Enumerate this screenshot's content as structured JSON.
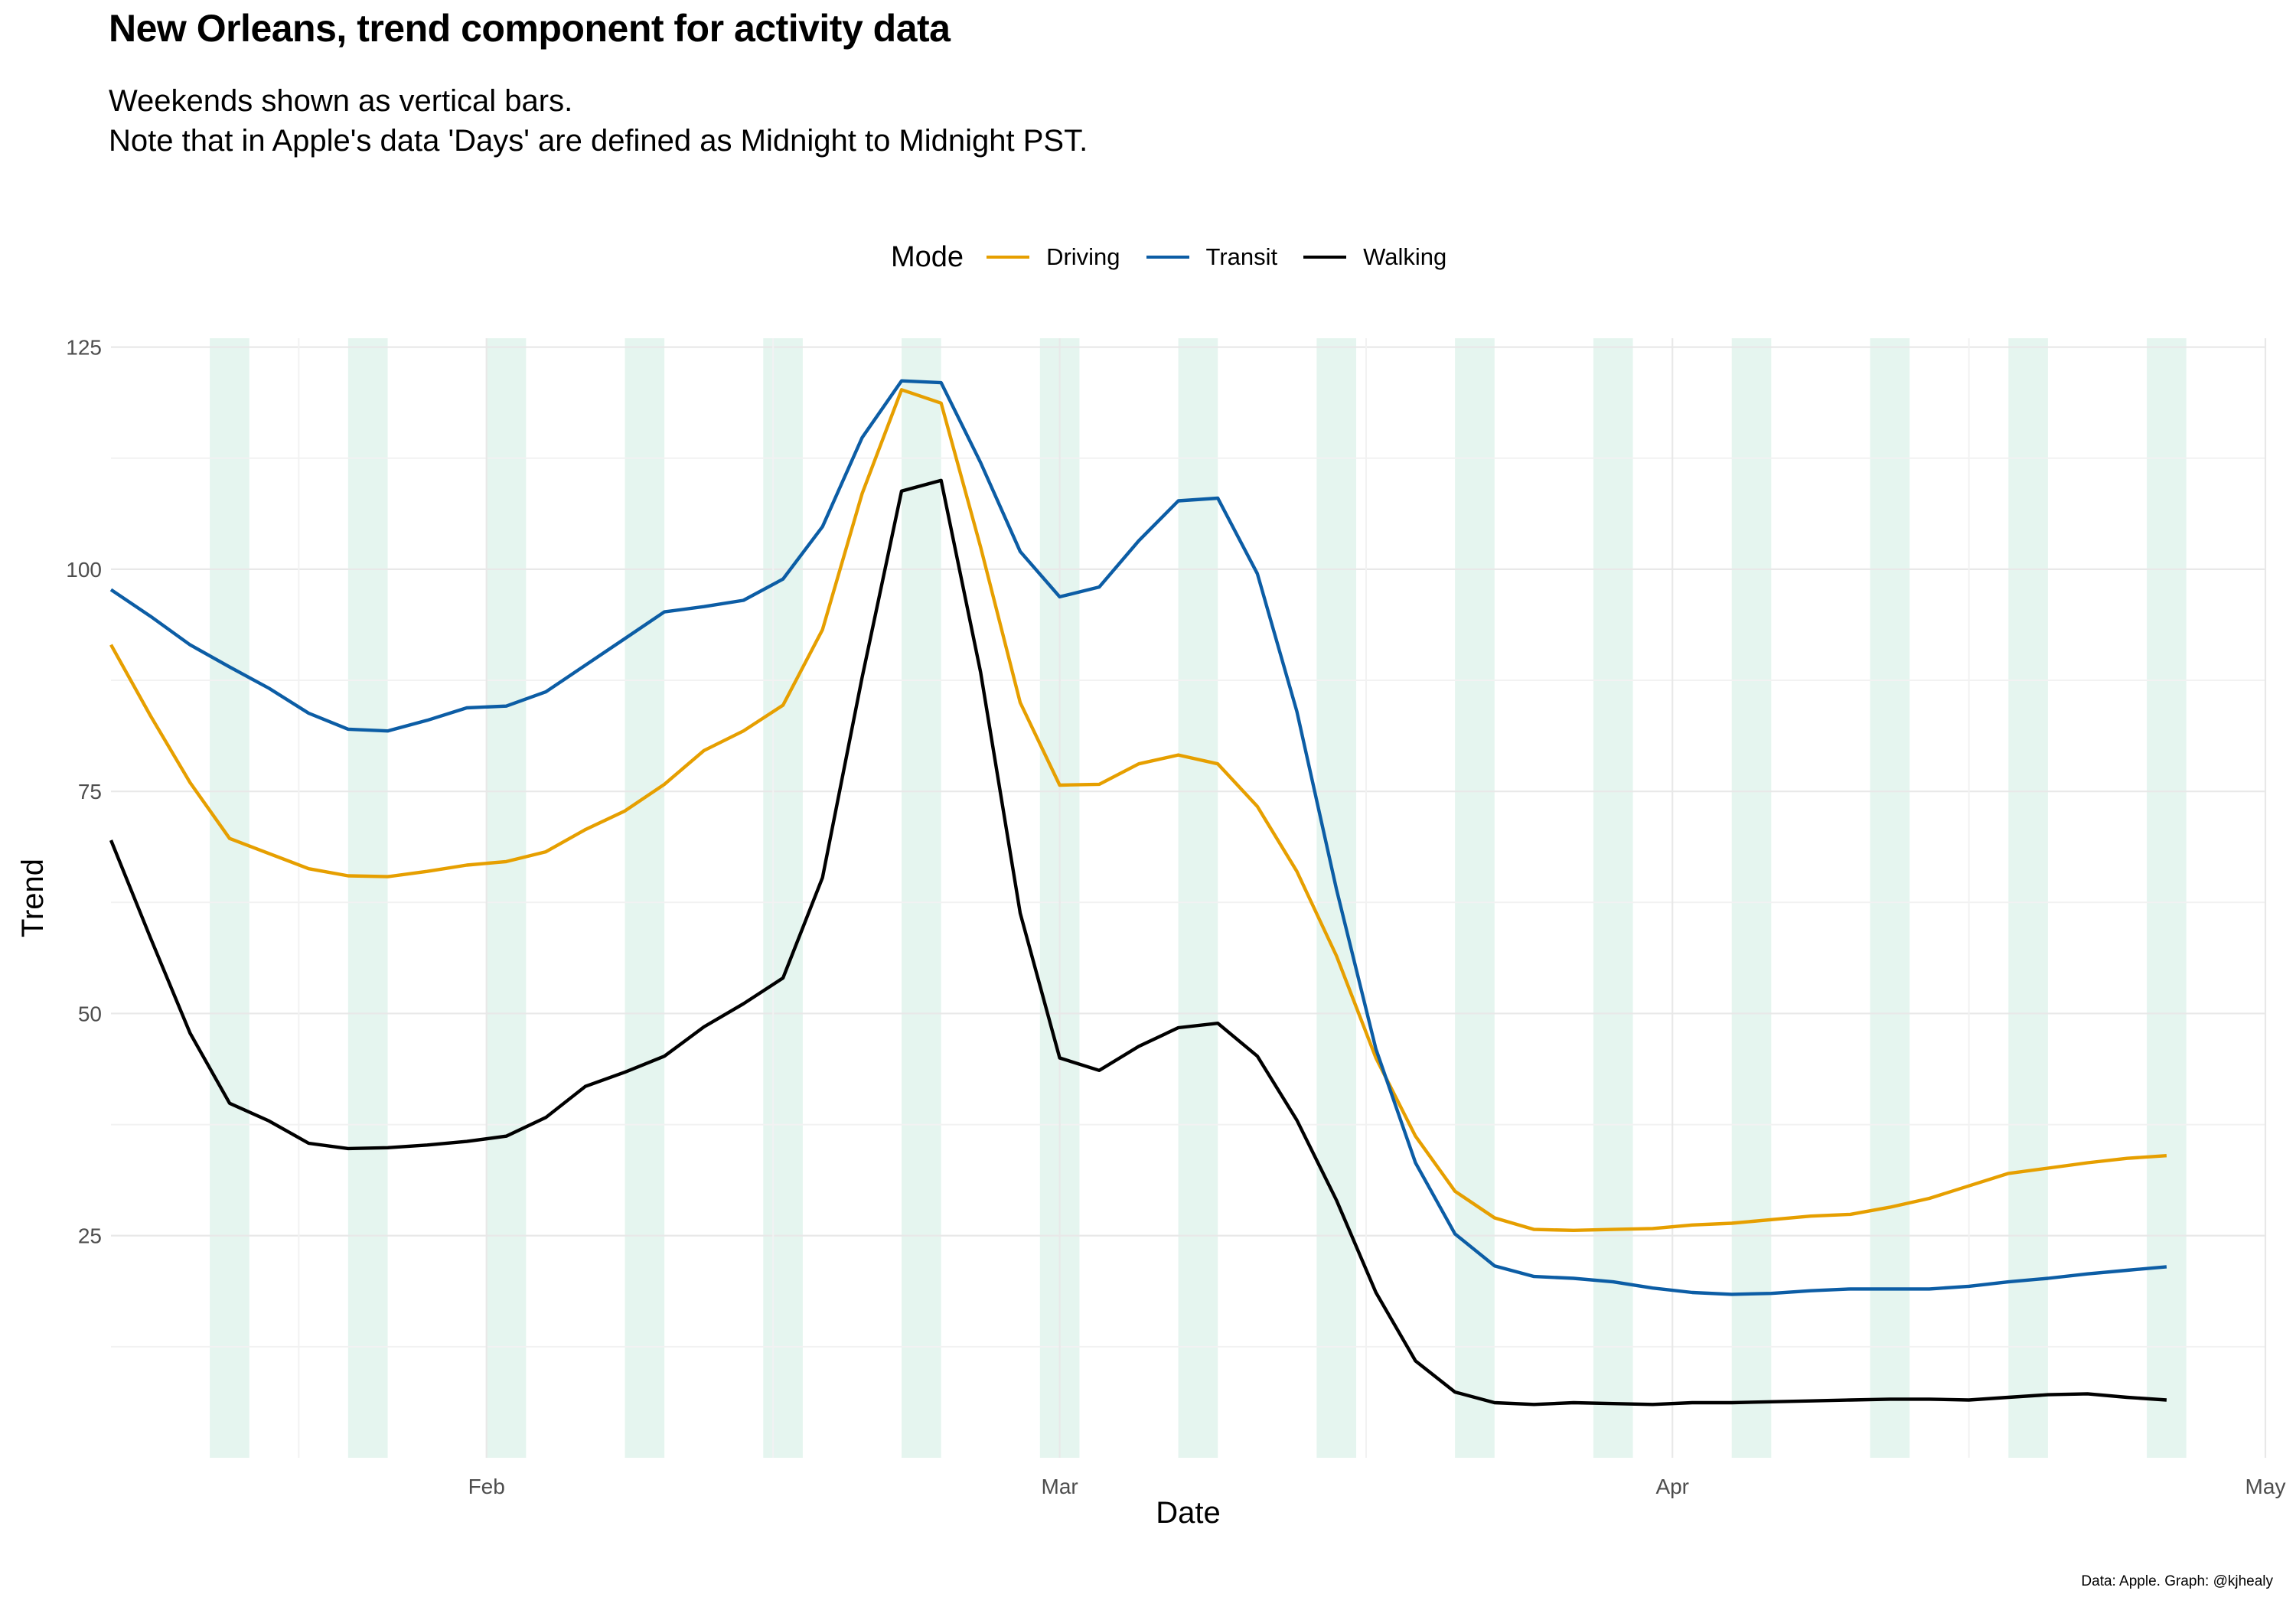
{
  "title": "New Orleans, trend component for activity data",
  "subtitle_lines": [
    "Weekends shown as vertical bars.",
    "Note that in Apple's data 'Days' are defined as Midnight to Midnight PST."
  ],
  "caption": "Data: Apple. Graph: @kjhealy",
  "legend": {
    "title": "Mode",
    "items": [
      {
        "label": "Driving",
        "color": "#E69F00"
      },
      {
        "label": "Transit",
        "color": "#0C5DA5"
      },
      {
        "label": "Walking",
        "color": "#000000"
      }
    ]
  },
  "chart_data": {
    "type": "line",
    "title": "New Orleans, trend component for activity data",
    "xlabel": "Date",
    "ylabel": "Trend",
    "xlim": [
      "2020-01-13",
      "2020-05-01"
    ],
    "ylim": [
      0,
      126
    ],
    "y_ticks": [
      25,
      50,
      75,
      100,
      125
    ],
    "x_ticks": [
      {
        "date": "2020-02-01",
        "label": "Feb"
      },
      {
        "date": "2020-03-01",
        "label": "Mar"
      },
      {
        "date": "2020-04-01",
        "label": "Apr"
      },
      {
        "date": "2020-05-01",
        "label": "May"
      }
    ],
    "grid": true,
    "legend_position": "top",
    "weekend_color": "#E5F5EF",
    "weekends": [
      [
        "2020-01-18",
        "2020-01-20"
      ],
      [
        "2020-01-25",
        "2020-01-27"
      ],
      [
        "2020-02-01",
        "2020-02-03"
      ],
      [
        "2020-02-08",
        "2020-02-10"
      ],
      [
        "2020-02-15",
        "2020-02-17"
      ],
      [
        "2020-02-22",
        "2020-02-24"
      ],
      [
        "2020-02-29",
        "2020-03-02"
      ],
      [
        "2020-03-07",
        "2020-03-09"
      ],
      [
        "2020-03-14",
        "2020-03-16"
      ],
      [
        "2020-03-21",
        "2020-03-23"
      ],
      [
        "2020-03-28",
        "2020-03-30"
      ],
      [
        "2020-04-04",
        "2020-04-06"
      ],
      [
        "2020-04-11",
        "2020-04-13"
      ],
      [
        "2020-04-18",
        "2020-04-20"
      ],
      [
        "2020-04-25",
        "2020-04-27"
      ]
    ],
    "x": [
      "2020-01-13",
      "2020-01-15",
      "2020-01-17",
      "2020-01-19",
      "2020-01-21",
      "2020-01-23",
      "2020-01-25",
      "2020-01-27",
      "2020-01-29",
      "2020-01-31",
      "2020-02-02",
      "2020-02-04",
      "2020-02-06",
      "2020-02-08",
      "2020-02-10",
      "2020-02-12",
      "2020-02-14",
      "2020-02-16",
      "2020-02-18",
      "2020-02-20",
      "2020-02-22",
      "2020-02-24",
      "2020-02-26",
      "2020-02-28",
      "2020-03-01",
      "2020-03-03",
      "2020-03-05",
      "2020-03-07",
      "2020-03-09",
      "2020-03-11",
      "2020-03-13",
      "2020-03-15",
      "2020-03-17",
      "2020-03-19",
      "2020-03-21",
      "2020-03-23",
      "2020-03-25",
      "2020-03-27",
      "2020-03-29",
      "2020-03-31",
      "2020-04-02",
      "2020-04-04",
      "2020-04-06",
      "2020-04-08",
      "2020-04-10",
      "2020-04-12",
      "2020-04-14",
      "2020-04-16",
      "2020-04-18",
      "2020-04-20",
      "2020-04-22",
      "2020-04-24",
      "2020-04-26"
    ],
    "series": [
      {
        "name": "Driving",
        "color": "#E69F00",
        "values": [
          91.5,
          83.5,
          76,
          69.7,
          68,
          66.3,
          65.5,
          65.4,
          66,
          66.7,
          67.1,
          68.2,
          70.7,
          72.8,
          75.8,
          79.6,
          81.8,
          84.7,
          93.2,
          108.5,
          120.2,
          118.7,
          102.5,
          85,
          75.7,
          75.8,
          78.1,
          79.1,
          78.1,
          73.3,
          66,
          56.5,
          45,
          36.2,
          30,
          27,
          25.7,
          25.6,
          25.7,
          25.8,
          26.2,
          26.4,
          26.8,
          27.2,
          27.4,
          28.2,
          29.2,
          30.6,
          32,
          32.6,
          33.2,
          33.7,
          34
        ]
      },
      {
        "name": "Transit",
        "color": "#0C5DA5",
        "values": [
          97.7,
          94.7,
          91.5,
          89,
          86.6,
          83.8,
          82,
          81.8,
          83,
          84.4,
          84.6,
          86.2,
          89.2,
          92.2,
          95.2,
          95.8,
          96.5,
          98.9,
          104.8,
          114.8,
          121.2,
          121,
          112,
          102,
          96.9,
          98,
          103.2,
          107.7,
          108,
          99.5,
          84,
          64,
          46,
          33.2,
          25.2,
          21.6,
          20.4,
          20.2,
          19.8,
          19.1,
          18.6,
          18.4,
          18.5,
          18.8,
          19,
          19,
          19,
          19.3,
          19.8,
          20.2,
          20.7,
          21.1,
          21.5
        ]
      },
      {
        "name": "Walking",
        "color": "#000000",
        "values": [
          69.5,
          58.5,
          47.8,
          39.9,
          37.9,
          35.4,
          34.8,
          34.9,
          35.2,
          35.6,
          36.2,
          38.3,
          41.8,
          43.4,
          45.2,
          48.5,
          51.1,
          54,
          65.3,
          87.8,
          108.8,
          110,
          88.4,
          61.3,
          45,
          43.6,
          46.3,
          48.4,
          48.9,
          45.2,
          38,
          29,
          18.6,
          10.9,
          7.4,
          6.2,
          6,
          6.2,
          6.1,
          6,
          6.2,
          6.2,
          6.3,
          6.4,
          6.5,
          6.6,
          6.6,
          6.5,
          6.8,
          7.1,
          7.2,
          6.8,
          6.5
        ]
      }
    ]
  }
}
